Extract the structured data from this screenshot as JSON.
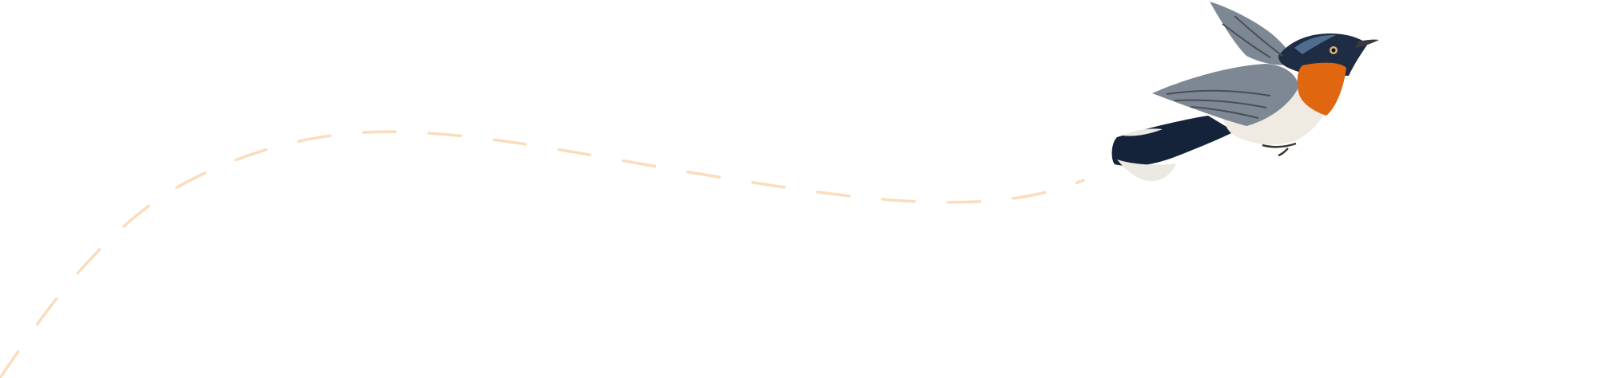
{
  "illustration": {
    "subject": "bird-illustration",
    "flight_path": {
      "style": "dashed",
      "color": "#fbdcbc"
    },
    "colors": {
      "background": "#ffffff",
      "head": "#1f2d44",
      "head_highlight": "#4f6d8f",
      "throat": "#e0670f",
      "throat_light": "#f0942a",
      "belly": "#efebe3",
      "wing": "#7d8894",
      "wing_dark": "#4a4f55",
      "wing_brown": "#8a7558",
      "tail": "#15233a",
      "tail_tip": "#ece9e2",
      "beak": "#3a3a3a",
      "eye_ring": "#d9b27a"
    }
  }
}
